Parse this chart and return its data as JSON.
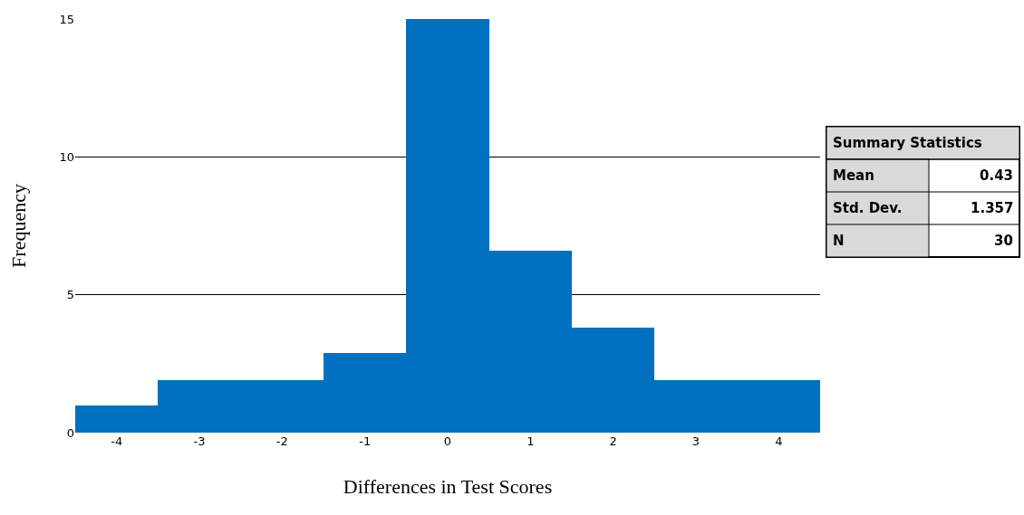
{
  "chart_data": {
    "type": "histogram",
    "xlabel": "Differences in Test Scores",
    "ylabel": "Frequency",
    "bins": [
      -4.5,
      -3.5,
      -2.5,
      -1.5,
      -0.5,
      0.5,
      1.5,
      2.5,
      3.5,
      4.5
    ],
    "values": [
      1,
      1.9,
      1.9,
      2.9,
      15,
      6.6,
      3.8,
      1.9,
      1.9
    ],
    "color": "#0070c0",
    "xlim": [
      -4.5,
      4.5
    ],
    "xticks": [
      -4,
      -3,
      -2,
      -1,
      0,
      1,
      2,
      3,
      4
    ],
    "ylim": [
      0,
      15
    ],
    "yticks": [
      0,
      5,
      10,
      15
    ],
    "grid": "y",
    "annotations": [
      "Summary Statistics",
      "Mean",
      "0.43",
      "Std. Dev.",
      "1.357",
      "N",
      "30"
    ]
  }
}
